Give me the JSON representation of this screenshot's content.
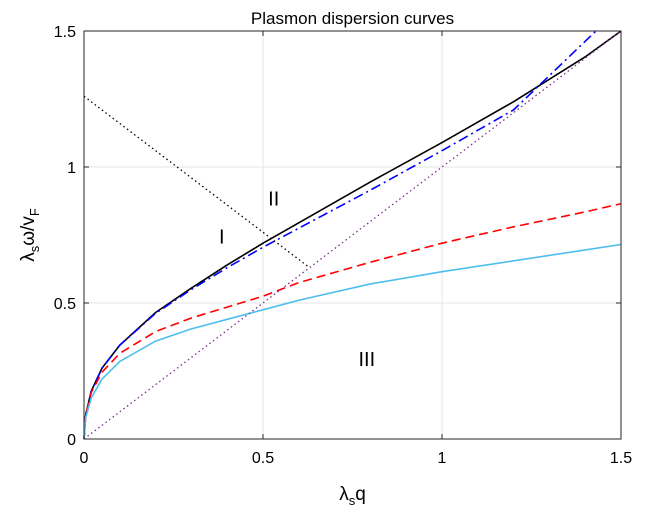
{
  "chart_data": {
    "type": "line",
    "title": "Plasmon dispersion curves",
    "xlabel": {
      "main": "λ",
      "sub": "s",
      "tail": "q"
    },
    "ylabel": {
      "main": "λ",
      "sub": "s",
      "mid": "ω/v",
      "sub2": "F"
    },
    "xlim": [
      0,
      1.5
    ],
    "ylim": [
      0,
      1.5
    ],
    "grid": true,
    "x_ticks": [
      {
        "value": 0,
        "label": "0"
      },
      {
        "value": 0.5,
        "label": "0.5"
      },
      {
        "value": 1,
        "label": "1"
      },
      {
        "value": 1.5,
        "label": "1.5"
      }
    ],
    "y_ticks": [
      {
        "value": 0,
        "label": "0"
      },
      {
        "value": 0.5,
        "label": "0.5"
      },
      {
        "value": 1,
        "label": "1"
      },
      {
        "value": 1.5,
        "label": "1.5"
      }
    ],
    "series": [
      {
        "style": "solid",
        "color": "#000000",
        "x": [
          0,
          0.005,
          0.02,
          0.05,
          0.1,
          0.2,
          0.3,
          0.4,
          0.5,
          0.6,
          0.8,
          1.0,
          1.2,
          1.4,
          1.5
        ],
        "y": [
          0,
          0.09,
          0.175,
          0.26,
          0.345,
          0.465,
          0.555,
          0.64,
          0.72,
          0.795,
          0.945,
          1.09,
          1.24,
          1.405,
          1.5
        ]
      },
      {
        "style": "dashdot",
        "color": "#0000ff",
        "x": [
          0,
          0.005,
          0.02,
          0.05,
          0.1,
          0.2,
          0.3,
          0.4,
          0.5,
          0.6,
          0.8,
          1.0,
          1.2,
          1.43
        ],
        "y": [
          0,
          0.09,
          0.175,
          0.26,
          0.345,
          0.462,
          0.55,
          0.63,
          0.705,
          0.775,
          0.915,
          1.06,
          1.21,
          1.5
        ]
      },
      {
        "style": "dashed",
        "color": "#ff0000",
        "x": [
          0,
          0.005,
          0.02,
          0.05,
          0.1,
          0.2,
          0.3,
          0.4,
          0.5,
          0.6,
          0.8,
          1.0,
          1.2,
          1.4,
          1.5
        ],
        "y": [
          0,
          0.09,
          0.17,
          0.245,
          0.315,
          0.395,
          0.445,
          0.485,
          0.525,
          0.575,
          0.65,
          0.72,
          0.78,
          0.835,
          0.865
        ]
      },
      {
        "style": "solid",
        "color": "#4dbeee",
        "x": [
          0,
          0.005,
          0.02,
          0.05,
          0.1,
          0.2,
          0.3,
          0.4,
          0.5,
          0.6,
          0.8,
          1.0,
          1.2,
          1.4,
          1.5
        ],
        "y": [
          0,
          0.08,
          0.15,
          0.22,
          0.285,
          0.36,
          0.405,
          0.44,
          0.475,
          0.51,
          0.57,
          0.615,
          0.655,
          0.695,
          0.715
        ]
      },
      {
        "style": "dotted",
        "color": "#000000",
        "x": [
          0,
          0.625
        ],
        "y": [
          1.26,
          0.635
        ]
      },
      {
        "style": "dotted",
        "color": "#7e2f8e",
        "x": [
          0,
          1.5
        ],
        "y": [
          0,
          1.5
        ]
      }
    ],
    "annotations": [
      {
        "text": "I",
        "x": 0.385,
        "y": 0.745
      },
      {
        "text": "II",
        "x": 0.53,
        "y": 0.885
      },
      {
        "text": "III",
        "x": 0.79,
        "y": 0.295
      }
    ]
  }
}
